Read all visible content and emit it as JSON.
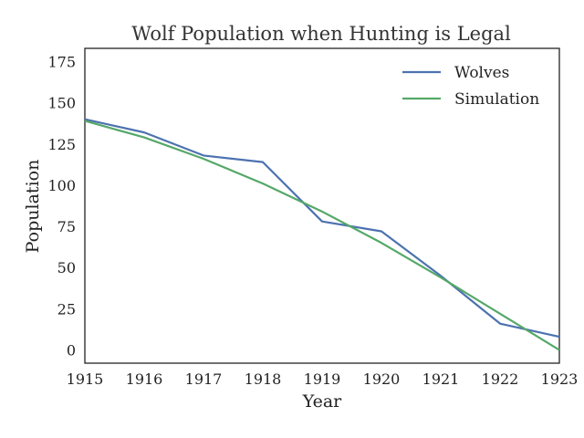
{
  "chart_data": {
    "type": "line",
    "title": "Wolf Population when Hunting is Legal",
    "xlabel": "Year",
    "ylabel": "Population",
    "xlim": [
      1915,
      1923
    ],
    "ylim": [
      -8,
      183
    ],
    "x_ticks": [
      "1915",
      "1916",
      "1917",
      "1918",
      "1919",
      "1920",
      "1921",
      "1922",
      "1923"
    ],
    "y_ticks": [
      "175",
      "150",
      "125",
      "100",
      "75",
      "50",
      "25",
      "0"
    ],
    "grid": false,
    "legend_position": "top-right",
    "series": [
      {
        "name": "Wolves",
        "color": "#4c72b0",
        "x": [
          1915,
          1916,
          1917,
          1918,
          1919,
          1920,
          1921,
          1922,
          1923
        ],
        "y": [
          140,
          132,
          118,
          114,
          78,
          72,
          45,
          16,
          8
        ]
      },
      {
        "name": "Simulation",
        "color": "#55a868",
        "x": [
          1915,
          1916,
          1917,
          1918,
          1919,
          1920,
          1921,
          1922,
          1923
        ],
        "y": [
          139,
          129,
          116,
          101,
          84,
          65,
          44,
          22,
          0
        ]
      }
    ]
  }
}
